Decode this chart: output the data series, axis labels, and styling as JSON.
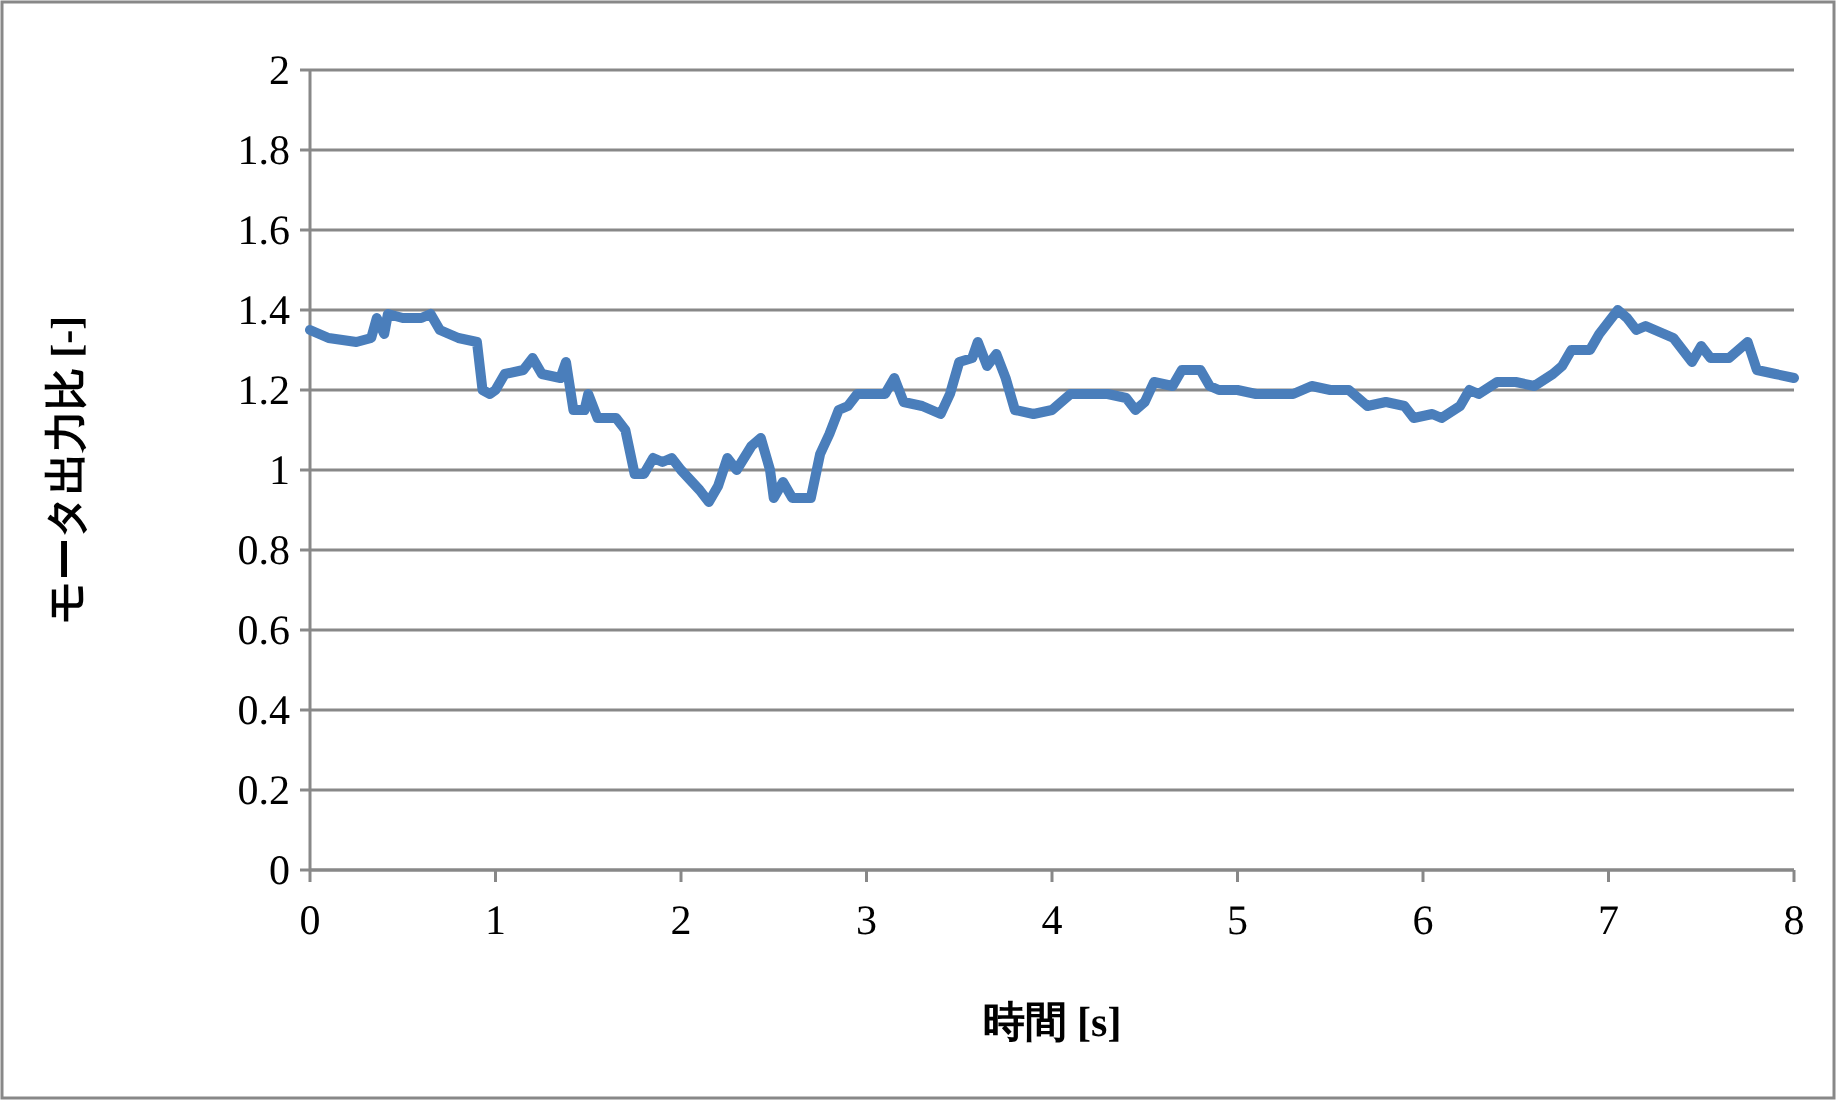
{
  "chart_data": {
    "type": "line",
    "xlabel": "時間 [s]",
    "ylabel": "モータ出力比 [-]",
    "x": [
      0,
      0.1,
      0.25,
      0.33,
      0.36,
      0.4,
      0.42,
      0.5,
      0.6,
      0.65,
      0.7,
      0.8,
      0.9,
      0.93,
      0.97,
      1.0,
      1.05,
      1.15,
      1.2,
      1.25,
      1.35,
      1.38,
      1.42,
      1.48,
      1.5,
      1.55,
      1.65,
      1.7,
      1.75,
      1.8,
      1.85,
      1.9,
      1.95,
      2.0,
      2.1,
      2.15,
      2.2,
      2.25,
      2.3,
      2.38,
      2.43,
      2.48,
      2.5,
      2.55,
      2.6,
      2.7,
      2.75,
      2.8,
      2.85,
      2.9,
      2.95,
      3.0,
      3.1,
      3.15,
      3.2,
      3.3,
      3.4,
      3.45,
      3.5,
      3.57,
      3.6,
      3.65,
      3.7,
      3.75,
      3.8,
      3.9,
      4.0,
      4.1,
      4.3,
      4.4,
      4.45,
      4.5,
      4.55,
      4.65,
      4.7,
      4.8,
      4.85,
      4.9,
      5.0,
      5.1,
      5.3,
      5.4,
      5.5,
      5.6,
      5.7,
      5.8,
      5.9,
      5.95,
      6.05,
      6.1,
      6.2,
      6.25,
      6.3,
      6.4,
      6.5,
      6.6,
      6.7,
      6.75,
      6.8,
      6.9,
      6.95,
      7.0,
      7.05,
      7.1,
      7.15,
      7.2,
      7.3,
      7.35,
      7.45,
      7.5,
      7.55,
      7.65,
      7.75,
      7.8,
      7.9,
      8.0
    ],
    "series": [
      {
        "color": "#4a7ebb",
        "values": [
          1.35,
          1.33,
          1.32,
          1.33,
          1.38,
          1.34,
          1.39,
          1.38,
          1.38,
          1.39,
          1.35,
          1.33,
          1.32,
          1.2,
          1.19,
          1.2,
          1.24,
          1.25,
          1.28,
          1.24,
          1.23,
          1.27,
          1.15,
          1.15,
          1.19,
          1.13,
          1.13,
          1.1,
          0.99,
          0.99,
          1.03,
          1.02,
          1.03,
          1.0,
          0.95,
          0.92,
          0.96,
          1.03,
          1.0,
          1.06,
          1.08,
          1.0,
          0.93,
          0.97,
          0.93,
          0.93,
          1.04,
          1.09,
          1.15,
          1.16,
          1.19,
          1.19,
          1.19,
          1.23,
          1.17,
          1.16,
          1.14,
          1.19,
          1.27,
          1.28,
          1.32,
          1.26,
          1.29,
          1.23,
          1.15,
          1.14,
          1.15,
          1.19,
          1.19,
          1.18,
          1.15,
          1.17,
          1.22,
          1.21,
          1.25,
          1.25,
          1.21,
          1.2,
          1.2,
          1.19,
          1.19,
          1.21,
          1.2,
          1.2,
          1.16,
          1.17,
          1.16,
          1.13,
          1.14,
          1.13,
          1.16,
          1.2,
          1.19,
          1.22,
          1.22,
          1.21,
          1.24,
          1.26,
          1.3,
          1.3,
          1.34,
          1.37,
          1.4,
          1.38,
          1.35,
          1.36,
          1.34,
          1.33,
          1.27,
          1.31,
          1.28,
          1.28,
          1.32,
          1.25,
          1.24,
          1.23
        ]
      }
    ],
    "xlim": [
      0,
      8
    ],
    "ylim": [
      0,
      2
    ],
    "xticks": [
      0,
      1,
      2,
      3,
      4,
      5,
      6,
      7,
      8
    ],
    "yticks": [
      0,
      0.2,
      0.4,
      0.6,
      0.8,
      1,
      1.2,
      1.4,
      1.6,
      1.8,
      2
    ],
    "grid": "y"
  }
}
